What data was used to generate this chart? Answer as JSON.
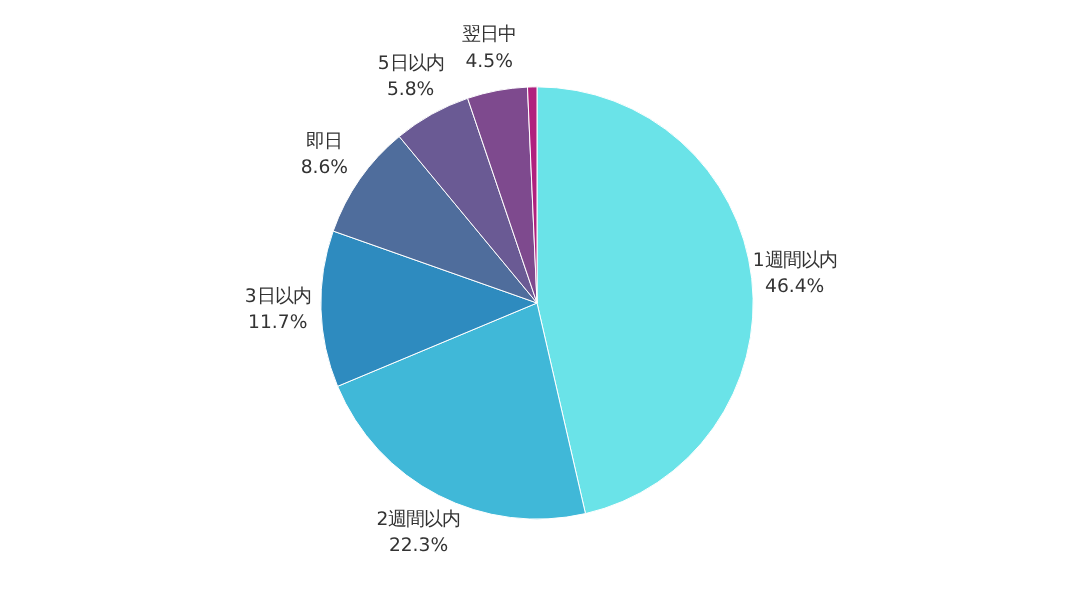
{
  "chart_data": {
    "type": "pie",
    "categories": [
      "1週間以内",
      "2週間以内",
      "3日以内",
      "即日",
      "5日以内",
      "翌日中",
      null
    ],
    "values": [
      46.4,
      22.3,
      11.7,
      8.6,
      5.8,
      4.5,
      0.7
    ],
    "value_labels": [
      "46.4%",
      "22.3%",
      "11.7%",
      "8.6%",
      "5.8%",
      "4.5%",
      null
    ],
    "colors": [
      "#6ae3e8",
      "#40b8d8",
      "#2e8bbf",
      "#4f6d9c",
      "#6a5a94",
      "#7e4a8e",
      "#b0207e"
    ]
  }
}
